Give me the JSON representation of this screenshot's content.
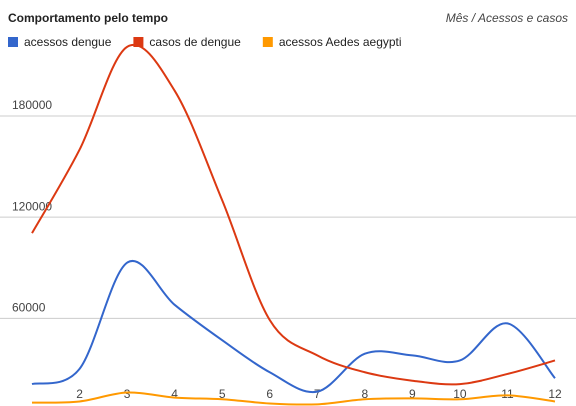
{
  "chart_data": {
    "type": "line",
    "title": "Comportamento pelo tempo",
    "subtitle": "Mês / Acessos e casos",
    "x": [
      1,
      2,
      3,
      4,
      5,
      6,
      7,
      8,
      9,
      10,
      11,
      12
    ],
    "xlim": [
      1,
      12
    ],
    "xticks": [
      2,
      3,
      4,
      5,
      6,
      7,
      8,
      9,
      10,
      11,
      12
    ],
    "ylim": [
      8000,
      231000
    ],
    "yticks": [
      60000,
      120000,
      180000
    ],
    "grid": true,
    "legend": "top",
    "series": [
      {
        "name": "acessos dengue",
        "color": "#3366cc",
        "values": [
          21000,
          30000,
          93000,
          68000,
          47000,
          28000,
          16500,
          39000,
          38000,
          35000,
          57000,
          24500
        ]
      },
      {
        "name": "casos de dengue",
        "color": "#dc3912",
        "values": [
          110500,
          160000,
          221000,
          195000,
          130000,
          59000,
          38000,
          28000,
          23000,
          21000,
          27000,
          35000
        ]
      },
      {
        "name": "acessos Aedes aegypti",
        "color": "#ff9900",
        "values": [
          10000,
          10700,
          16000,
          13000,
          12000,
          9500,
          9000,
          12000,
          12500,
          12000,
          14300,
          10700
        ]
      }
    ]
  }
}
